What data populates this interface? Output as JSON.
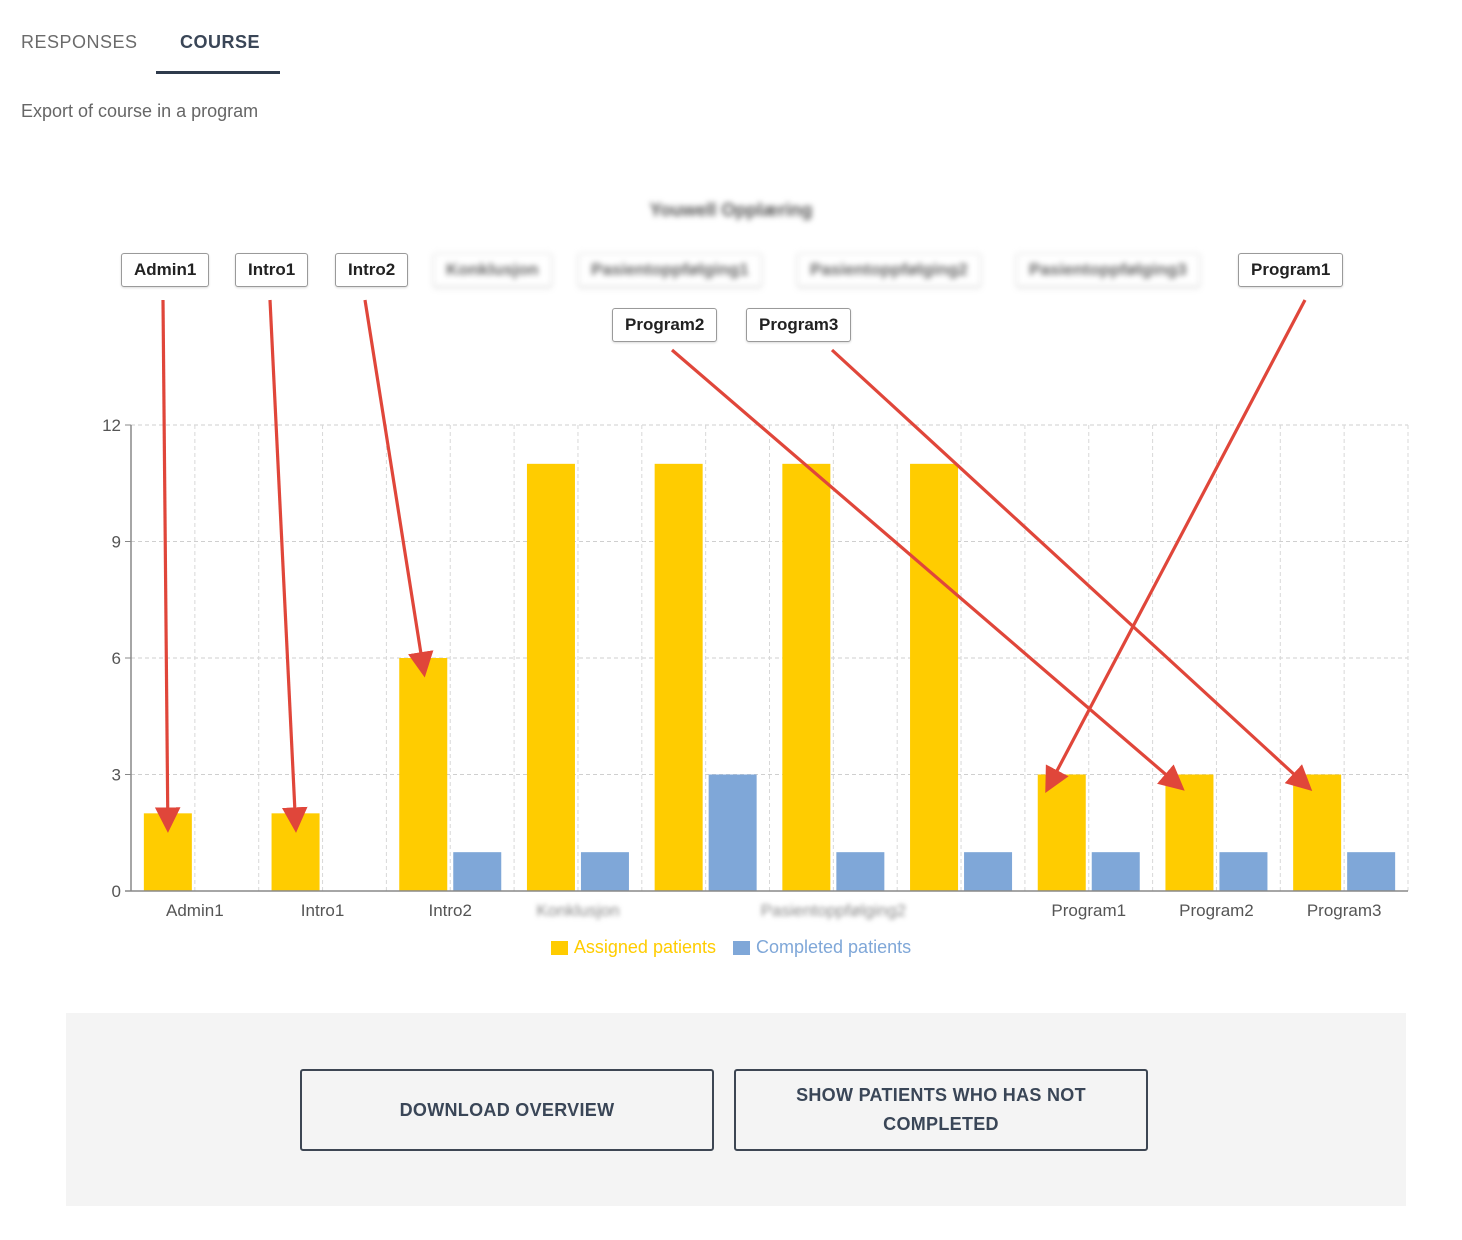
{
  "tabs": [
    {
      "label": "RESPONSES",
      "active": false
    },
    {
      "label": "COURSE",
      "active": true
    }
  ],
  "subtitle": "Export of course in a program",
  "chart_data": {
    "type": "bar",
    "title": "Youwell Opplæring",
    "categories": [
      "Admin1",
      "Intro1",
      "Intro2",
      "Konklusjon",
      "Pasientoppfølging1",
      "Pasientoppfølging2",
      "Pasientoppfølging3",
      "Program1",
      "Program2",
      "Program3"
    ],
    "visible_tick_labels": [
      "Admin1",
      "Intro1",
      "Intro2",
      "Konklusjon",
      "",
      "Pasientoppfølging2",
      "",
      "Program1",
      "Program2",
      "Program3"
    ],
    "series": [
      {
        "name": "Assigned patients",
        "color": "#ffcc00",
        "values": [
          2,
          2,
          6,
          11,
          11,
          11,
          11,
          3,
          3,
          3
        ]
      },
      {
        "name": "Completed patients",
        "color": "#7fa7d8",
        "values": [
          0,
          0,
          1,
          1,
          3,
          1,
          1,
          1,
          1,
          1
        ]
      }
    ],
    "ylim": [
      0,
      12
    ],
    "yticks": [
      0,
      3,
      6,
      9,
      12
    ],
    "grid": true,
    "legend_position": "bottom",
    "blurred_categories": [
      "Konklusjon",
      "Pasientoppfølging1",
      "Pasientoppfølging2",
      "Pasientoppfølging3"
    ]
  },
  "callouts": {
    "row1": [
      "Admin1",
      "Intro1",
      "Intro2",
      "Konklusjon",
      "Pasientoppfølging1",
      "Pasientoppfølging2",
      "Pasientoppfølging3",
      "Program1"
    ],
    "row2": [
      "Program2",
      "Program3"
    ]
  },
  "annotation_color": "#e0463a",
  "footer": {
    "download_label": "DOWNLOAD OVERVIEW",
    "show_label": "SHOW PATIENTS WHO HAS NOT COMPLETED"
  }
}
